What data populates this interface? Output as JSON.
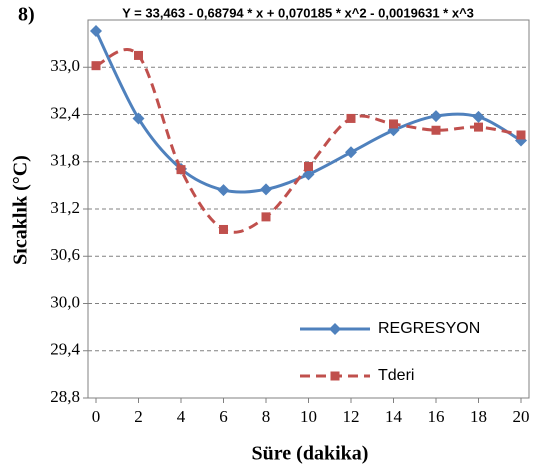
{
  "chart_data": {
    "type": "line",
    "panel_label": "8)",
    "title": "Y = 33,463 - 0,68794 * x + 0,070185 * x^2 - 0,0019631 * x^3",
    "x_label": "Süre (dakika)",
    "y_label": "Sıcaklık (°C)",
    "x": [
      0,
      2,
      4,
      6,
      8,
      10,
      12,
      14,
      16,
      18,
      20
    ],
    "xlim": [
      0,
      20
    ],
    "xticks": [
      0,
      2,
      4,
      6,
      8,
      10,
      12,
      14,
      16,
      18,
      20
    ],
    "ylim": [
      28.8,
      33.6
    ],
    "yticks": [
      {
        "value": 28.8,
        "label": "28,8"
      },
      {
        "value": 29.4,
        "label": "29,4"
      },
      {
        "value": 30.0,
        "label": "30,0"
      },
      {
        "value": 30.6,
        "label": "30,6"
      },
      {
        "value": 31.2,
        "label": "31,2"
      },
      {
        "value": 31.8,
        "label": "31,8"
      },
      {
        "value": 32.4,
        "label": "32,4"
      },
      {
        "value": 33.0,
        "label": "33,0"
      }
    ],
    "grid": true,
    "legend_position": "lower right",
    "series": [
      {
        "name": "REGRESYON",
        "color": "#4f81bd",
        "marker": "diamond",
        "line_style": "solid",
        "values": [
          33.46,
          32.35,
          31.71,
          31.44,
          31.45,
          31.64,
          31.92,
          32.2,
          32.38,
          32.37,
          32.07
        ]
      },
      {
        "name": "Tderi",
        "color": "#c0504d",
        "marker": "square",
        "line_style": "dashed",
        "values": [
          33.02,
          33.15,
          31.7,
          30.94,
          31.1,
          31.74,
          32.35,
          32.28,
          32.2,
          32.24,
          32.14
        ]
      }
    ]
  }
}
